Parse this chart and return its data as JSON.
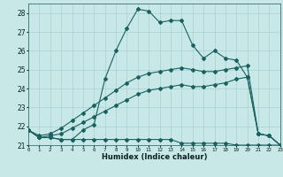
{
  "xlabel": "Humidex (Indice chaleur)",
  "bg_color": "#c8e8e8",
  "grid_color": "#a8d0d0",
  "line_color": "#1a6060",
  "xlim": [
    0,
    23
  ],
  "ylim": [
    21,
    28.5
  ],
  "yticks": [
    21,
    22,
    23,
    24,
    25,
    26,
    27,
    28
  ],
  "xticks": [
    0,
    1,
    2,
    3,
    4,
    5,
    6,
    7,
    8,
    9,
    10,
    11,
    12,
    13,
    14,
    15,
    16,
    17,
    18,
    19,
    20,
    21,
    22,
    23
  ],
  "series1_x": [
    0,
    1,
    2,
    3,
    4,
    5,
    6,
    7,
    8,
    9,
    10,
    11,
    12,
    13,
    14,
    15,
    16,
    17,
    18,
    19,
    20,
    21,
    22,
    23
  ],
  "series1_y": [
    21.8,
    21.4,
    21.4,
    21.3,
    21.3,
    21.8,
    22.1,
    24.5,
    26.0,
    27.2,
    28.2,
    28.1,
    27.5,
    27.6,
    27.6,
    26.3,
    25.6,
    26.0,
    25.6,
    25.5,
    24.6,
    21.6,
    21.5,
    21.0
  ],
  "series2_x": [
    0,
    1,
    2,
    3,
    4,
    5,
    6,
    7,
    8,
    9,
    10,
    11,
    12,
    13,
    14,
    15,
    16,
    17,
    18,
    19,
    20,
    21,
    22,
    23
  ],
  "series2_y": [
    21.8,
    21.4,
    21.4,
    21.3,
    21.3,
    21.3,
    21.3,
    21.3,
    21.3,
    21.3,
    21.3,
    21.3,
    21.3,
    21.3,
    21.1,
    21.1,
    21.1,
    21.1,
    21.1,
    21.0,
    21.0,
    21.0,
    21.0,
    21.0
  ],
  "series3_x": [
    0,
    1,
    2,
    3,
    4,
    5,
    6,
    7,
    8,
    9,
    10,
    11,
    12,
    13,
    14,
    15,
    16,
    17,
    18,
    19,
    20,
    21,
    22,
    23
  ],
  "series3_y": [
    21.8,
    21.4,
    21.5,
    21.6,
    21.9,
    22.2,
    22.5,
    22.8,
    23.1,
    23.4,
    23.7,
    23.9,
    24.0,
    24.1,
    24.2,
    24.1,
    24.1,
    24.2,
    24.3,
    24.5,
    24.6,
    21.6,
    21.5,
    21.0
  ],
  "series4_x": [
    0,
    1,
    2,
    3,
    4,
    5,
    6,
    7,
    8,
    9,
    10,
    11,
    12,
    13,
    14,
    15,
    16,
    17,
    18,
    19,
    20,
    21,
    22,
    23
  ],
  "series4_y": [
    21.8,
    21.5,
    21.6,
    21.9,
    22.3,
    22.7,
    23.1,
    23.5,
    23.9,
    24.3,
    24.6,
    24.8,
    24.9,
    25.0,
    25.1,
    25.0,
    24.9,
    24.9,
    25.0,
    25.1,
    25.2,
    21.6,
    21.5,
    21.0
  ]
}
